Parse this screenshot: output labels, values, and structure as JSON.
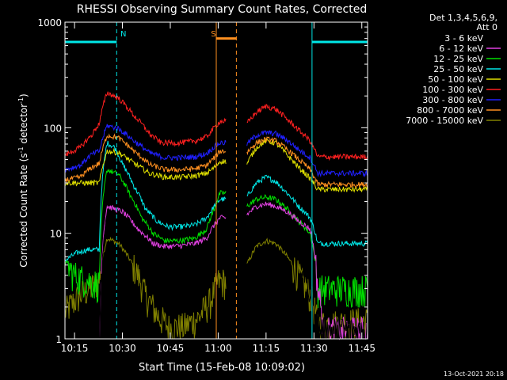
{
  "chart_data": {
    "type": "line",
    "title": "RHESSI Observing Summary Count Rates, Corrected",
    "xlabel": "Start Time (15-Feb-08 10:09:02)",
    "ylabel_main": "Corrected Count Rate (s",
    "ylabel_sup1": "-1",
    "ylabel_mid": " detector",
    "ylabel_sup2": "-1",
    "ylabel_end": ")",
    "footer": "13-Oct-2021 20:18",
    "yscale": "log",
    "ylim": [
      1,
      1000
    ],
    "xlim": [
      10.2,
      11.78
    ],
    "yticks": [
      {
        "v": 1,
        "label": "1"
      },
      {
        "v": 10,
        "label": "10"
      },
      {
        "v": 100,
        "label": "100"
      },
      {
        "v": 1000,
        "label": "1000"
      }
    ],
    "xticks": [
      {
        "v": 10.25,
        "label": "10:15"
      },
      {
        "v": 10.5,
        "label": "10:30"
      },
      {
        "v": 10.75,
        "label": "10:45"
      },
      {
        "v": 11.0,
        "label": "11:00"
      },
      {
        "v": 11.25,
        "label": "11:15"
      },
      {
        "v": 11.5,
        "label": "11:30"
      },
      {
        "v": 11.75,
        "label": "11:45"
      }
    ],
    "legend": {
      "position": "right",
      "header1": "Det 1,3,4,5,6,9,",
      "header2": "Att 0"
    },
    "gap": [
      11.04,
      11.15
    ],
    "series": [
      {
        "name": "3 - 6 keV",
        "color": "#000000",
        "points": [
          [
            10.2,
            0
          ],
          [
            10.28,
            0
          ],
          [
            10.38,
            0
          ],
          [
            10.42,
            15
          ],
          [
            10.5,
            13
          ],
          [
            10.58,
            8
          ],
          [
            10.66,
            4.5
          ],
          [
            10.72,
            3.2
          ],
          [
            10.8,
            3.2
          ],
          [
            10.88,
            3.4
          ],
          [
            10.94,
            4.2
          ],
          [
            10.98,
            6.5
          ],
          [
            11.01,
            9
          ],
          [
            11.04,
            9
          ],
          [
            11.15,
            12
          ],
          [
            11.2,
            14.5
          ],
          [
            11.25,
            15
          ],
          [
            11.3,
            14
          ],
          [
            11.36,
            10
          ],
          [
            11.42,
            6.5
          ],
          [
            11.48,
            2.5
          ],
          [
            11.53,
            1.2
          ],
          [
            11.78,
            1.2
          ]
        ]
      },
      {
        "name": "6 - 12 keV",
        "color": "#e040e0",
        "points": [
          [
            10.2,
            0
          ],
          [
            10.38,
            0
          ],
          [
            10.42,
            18
          ],
          [
            10.5,
            16
          ],
          [
            10.58,
            11
          ],
          [
            10.66,
            8
          ],
          [
            10.72,
            7.5
          ],
          [
            10.8,
            7.6
          ],
          [
            10.88,
            8
          ],
          [
            10.94,
            9
          ],
          [
            10.98,
            12
          ],
          [
            11.01,
            14
          ],
          [
            11.04,
            14
          ],
          [
            11.15,
            15
          ],
          [
            11.2,
            18
          ],
          [
            11.25,
            19
          ],
          [
            11.3,
            18
          ],
          [
            11.36,
            16
          ],
          [
            11.42,
            13
          ],
          [
            11.48,
            11
          ],
          [
            11.52,
            3
          ],
          [
            11.55,
            1.2
          ],
          [
            11.78,
            1.2
          ]
        ]
      },
      {
        "name": "12 - 25 keV",
        "color": "#00e000",
        "points": [
          [
            10.2,
            5.5
          ],
          [
            10.24,
            4.2
          ],
          [
            10.28,
            3.8
          ],
          [
            10.34,
            3.5
          ],
          [
            10.38,
            3.3
          ],
          [
            10.42,
            40
          ],
          [
            10.48,
            36
          ],
          [
            10.54,
            23
          ],
          [
            10.6,
            14
          ],
          [
            10.66,
            10
          ],
          [
            10.72,
            8.5
          ],
          [
            10.8,
            8.5
          ],
          [
            10.88,
            9
          ],
          [
            10.94,
            11
          ],
          [
            10.98,
            17
          ],
          [
            11.01,
            24
          ],
          [
            11.04,
            24
          ],
          [
            11.15,
            18
          ],
          [
            11.2,
            21
          ],
          [
            11.25,
            22
          ],
          [
            11.3,
            21
          ],
          [
            11.36,
            17
          ],
          [
            11.42,
            13
          ],
          [
            11.48,
            10
          ],
          [
            11.52,
            3
          ],
          [
            11.58,
            3
          ],
          [
            11.78,
            3
          ]
        ]
      },
      {
        "name": "25 - 50 keV",
        "color": "#00e8e8",
        "points": [
          [
            10.2,
            5.5
          ],
          [
            10.26,
            6.5
          ],
          [
            10.32,
            7
          ],
          [
            10.38,
            7
          ],
          [
            10.42,
            72
          ],
          [
            10.46,
            65
          ],
          [
            10.5,
            45
          ],
          [
            10.56,
            28
          ],
          [
            10.62,
            17
          ],
          [
            10.68,
            13
          ],
          [
            10.74,
            11.5
          ],
          [
            10.8,
            11.5
          ],
          [
            10.88,
            12
          ],
          [
            10.94,
            14
          ],
          [
            10.98,
            18
          ],
          [
            11.01,
            21
          ],
          [
            11.04,
            21
          ],
          [
            11.15,
            22
          ],
          [
            11.2,
            30
          ],
          [
            11.25,
            34
          ],
          [
            11.3,
            31
          ],
          [
            11.36,
            24
          ],
          [
            11.42,
            18
          ],
          [
            11.48,
            14
          ],
          [
            11.52,
            8
          ],
          [
            11.6,
            8
          ],
          [
            11.78,
            8
          ]
        ]
      },
      {
        "name": "50 - 100 keV",
        "color": "#e0e000",
        "points": [
          [
            10.2,
            30
          ],
          [
            10.28,
            30
          ],
          [
            10.34,
            30
          ],
          [
            10.38,
            30
          ],
          [
            10.42,
            60
          ],
          [
            10.48,
            58
          ],
          [
            10.56,
            46
          ],
          [
            10.64,
            37
          ],
          [
            10.72,
            34
          ],
          [
            10.8,
            34
          ],
          [
            10.88,
            35
          ],
          [
            10.94,
            37
          ],
          [
            10.98,
            42
          ],
          [
            11.01,
            48
          ],
          [
            11.04,
            48
          ],
          [
            11.15,
            45
          ],
          [
            11.2,
            65
          ],
          [
            11.25,
            75
          ],
          [
            11.3,
            72
          ],
          [
            11.36,
            55
          ],
          [
            11.42,
            42
          ],
          [
            11.48,
            33
          ],
          [
            11.52,
            26
          ],
          [
            11.6,
            26
          ],
          [
            11.78,
            26
          ]
        ]
      },
      {
        "name": "100 - 300 keV",
        "color": "#ff2020",
        "points": [
          [
            10.2,
            55
          ],
          [
            10.28,
            65
          ],
          [
            10.34,
            85
          ],
          [
            10.38,
            110
          ],
          [
            10.42,
            215
          ],
          [
            10.48,
            190
          ],
          [
            10.56,
            130
          ],
          [
            10.64,
            88
          ],
          [
            10.7,
            72
          ],
          [
            10.8,
            72
          ],
          [
            10.88,
            75
          ],
          [
            10.94,
            82
          ],
          [
            10.98,
            100
          ],
          [
            11.01,
            115
          ],
          [
            11.04,
            115
          ],
          [
            11.15,
            110
          ],
          [
            11.2,
            140
          ],
          [
            11.25,
            160
          ],
          [
            11.3,
            150
          ],
          [
            11.36,
            120
          ],
          [
            11.42,
            95
          ],
          [
            11.48,
            75
          ],
          [
            11.52,
            53
          ],
          [
            11.6,
            53
          ],
          [
            11.78,
            53
          ]
        ]
      },
      {
        "name": "300 - 800 keV",
        "color": "#2020ff",
        "points": [
          [
            10.2,
            40
          ],
          [
            10.28,
            44
          ],
          [
            10.34,
            56
          ],
          [
            10.38,
            60
          ],
          [
            10.42,
            105
          ],
          [
            10.48,
            98
          ],
          [
            10.56,
            75
          ],
          [
            10.64,
            58
          ],
          [
            10.72,
            52
          ],
          [
            10.8,
            52
          ],
          [
            10.88,
            53
          ],
          [
            10.94,
            57
          ],
          [
            10.98,
            66
          ],
          [
            11.01,
            72
          ],
          [
            11.04,
            72
          ],
          [
            11.15,
            70
          ],
          [
            11.2,
            85
          ],
          [
            11.25,
            90
          ],
          [
            11.3,
            88
          ],
          [
            11.36,
            76
          ],
          [
            11.42,
            62
          ],
          [
            11.48,
            52
          ],
          [
            11.52,
            37
          ],
          [
            11.6,
            37
          ],
          [
            11.78,
            37
          ]
        ]
      },
      {
        "name": "800 - 7000 keV",
        "color": "#ff9020",
        "points": [
          [
            10.2,
            32
          ],
          [
            10.28,
            34
          ],
          [
            10.34,
            42
          ],
          [
            10.38,
            46
          ],
          [
            10.42,
            85
          ],
          [
            10.48,
            80
          ],
          [
            10.56,
            60
          ],
          [
            10.64,
            45
          ],
          [
            10.72,
            40
          ],
          [
            10.8,
            40
          ],
          [
            10.88,
            41
          ],
          [
            10.94,
            44
          ],
          [
            10.98,
            52
          ],
          [
            11.01,
            60
          ],
          [
            11.04,
            60
          ],
          [
            11.15,
            58
          ],
          [
            11.2,
            72
          ],
          [
            11.25,
            78
          ],
          [
            11.3,
            75
          ],
          [
            11.36,
            62
          ],
          [
            11.42,
            50
          ],
          [
            11.48,
            40
          ],
          [
            11.52,
            29
          ],
          [
            11.6,
            29
          ],
          [
            11.78,
            29
          ]
        ]
      },
      {
        "name": "7000 - 15000 keV",
        "color": "#808000",
        "points": [
          [
            10.2,
            1.8
          ],
          [
            10.24,
            2.2
          ],
          [
            10.28,
            2.6
          ],
          [
            10.34,
            3.1
          ],
          [
            10.38,
            3.6
          ],
          [
            10.42,
            9
          ],
          [
            10.48,
            8
          ],
          [
            10.56,
            4.8
          ],
          [
            10.62,
            2.6
          ],
          [
            10.68,
            1.7
          ],
          [
            10.74,
            1.3
          ],
          [
            10.82,
            1.3
          ],
          [
            10.9,
            1.6
          ],
          [
            10.96,
            2.3
          ],
          [
            11.0,
            3.5
          ],
          [
            11.04,
            3.5
          ],
          [
            11.15,
            5
          ],
          [
            11.2,
            7.5
          ],
          [
            11.25,
            8.5
          ],
          [
            11.3,
            8
          ],
          [
            11.36,
            6
          ],
          [
            11.42,
            4
          ],
          [
            11.48,
            2.6
          ],
          [
            11.52,
            1.4
          ],
          [
            11.6,
            1.4
          ],
          [
            11.78,
            1.5
          ]
        ]
      }
    ],
    "flags": [
      {
        "name": "N",
        "color": "#00e8e8",
        "level": 650,
        "segments": [
          [
            10.2,
            10.47
          ],
          [
            11.49,
            11.78
          ]
        ],
        "marker_x": [
          10.47,
          11.49,
          11.78
        ],
        "label_x": 10.505
      },
      {
        "name": "S",
        "color": "#ff9020",
        "level": 700,
        "segments": [
          [
            10.99,
            11.095
          ]
        ],
        "marker_x": [
          10.99,
          11.095
        ],
        "label_x": 10.975
      }
    ]
  }
}
